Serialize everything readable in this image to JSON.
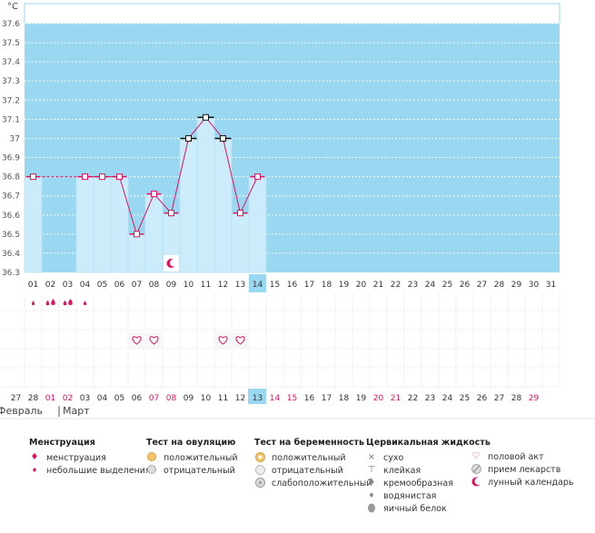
{
  "chart_data": {
    "type": "line",
    "ylabel": "°C",
    "ylim": [
      36.3,
      37.6
    ],
    "y_ticks": [
      "37.6",
      "37.5",
      "37.4",
      "37.3",
      "37.2",
      "37.1",
      "37",
      "36.9",
      "36.8",
      "36.7",
      "36.6",
      "36.5",
      "36.4",
      "36.3"
    ],
    "grid": true,
    "cycle_days": [
      "01",
      "02",
      "03",
      "04",
      "05",
      "06",
      "07",
      "08",
      "09",
      "10",
      "11",
      "12",
      "13",
      "14",
      "15",
      "16",
      "17",
      "18",
      "19",
      "20",
      "21",
      "22",
      "23",
      "24",
      "25",
      "26",
      "27",
      "28",
      "29",
      "30",
      "31"
    ],
    "current_day": "14",
    "temperatures": [
      36.8,
      null,
      null,
      36.8,
      36.8,
      36.8,
      36.5,
      36.71,
      36.61,
      37.0,
      37.11,
      37.0,
      36.61,
      36.8
    ],
    "gap_dashed": [
      1,
      4
    ],
    "markers": {
      "square": [
        1,
        4,
        5,
        6,
        7,
        8,
        9,
        13,
        14
      ],
      "bar_marker": [
        10,
        11,
        12
      ]
    },
    "moon_day": 9,
    "menstruation_days": [
      1,
      2,
      3,
      4
    ],
    "menstruation_small_days": [
      1,
      4
    ],
    "intercourse_days": [
      7,
      8,
      12,
      13
    ],
    "dates": [
      "27",
      "28",
      "01",
      "02",
      "03",
      "04",
      "05",
      "06",
      "07",
      "08",
      "09",
      "10",
      "11",
      "12",
      "13",
      "14",
      "15",
      "16",
      "17",
      "18",
      "19",
      "20",
      "21",
      "22",
      "23",
      "24",
      "25",
      "26",
      "27",
      "28",
      "29"
    ],
    "red_date_indices": [
      2,
      3,
      8,
      9,
      15,
      16,
      21,
      22,
      30
    ],
    "current_date_index": 13,
    "months": [
      "Февраль",
      "Март"
    ]
  },
  "legend": {
    "menstruation": {
      "title": "Менструация",
      "items": [
        "менструация",
        "небольшие выделения"
      ]
    },
    "ovulation_test": {
      "title": "Тест на овуляцию",
      "items": [
        "положительный",
        "отрицательный"
      ]
    },
    "pregnancy_test": {
      "title": "Тест на беременность",
      "items": [
        "положительный",
        "отрицательный",
        "слабоположительный"
      ]
    },
    "cervical": {
      "title": "Цервикальная жидкость",
      "items": [
        "сухо",
        "клейкая",
        "кремообразная",
        "водянистая",
        "яичный белок"
      ]
    },
    "other": {
      "items": [
        "половой акт",
        "прием лекарств",
        "лунный календарь"
      ]
    }
  },
  "colors": {
    "bg_blue": "#9ad8f2",
    "bar_fill": "#cdecfb",
    "line": "#e0115f",
    "accent": "#e0115f"
  }
}
